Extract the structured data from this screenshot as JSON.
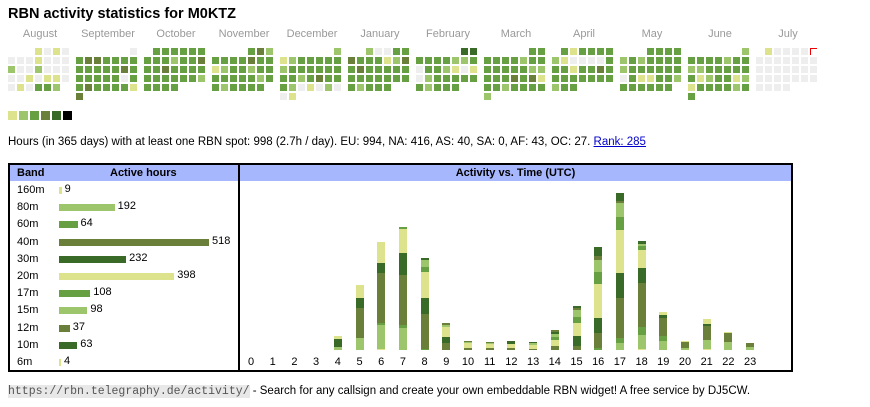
{
  "title": "RBN activity statistics for M0KTZ",
  "level_colors": {
    "0": "#eeeeee",
    "1": "#dce38c",
    "2": "#9dc56b",
    "3": "#67a043",
    "4": "#6a7f3a",
    "5": "#3a6a27",
    "6": "#000000"
  },
  "calendar": {
    "months": [
      {
        "name": "August",
        "weeks": [
          [
            "",
            "",
            "",
            1,
            0,
            1,
            0
          ],
          [
            0,
            0,
            0,
            1,
            0,
            0,
            0
          ],
          [
            2,
            0,
            0,
            2,
            0,
            0,
            0
          ],
          [
            0,
            0,
            1,
            0,
            1,
            1,
            0
          ],
          [
            0,
            1,
            0,
            3,
            3,
            2,
            ""
          ]
        ]
      },
      {
        "name": "September",
        "weeks": [
          [
            "",
            "",
            "",
            "",
            "",
            "",
            0
          ],
          [
            3,
            4,
            4,
            3,
            3,
            3,
            3
          ],
          [
            3,
            3,
            3,
            3,
            3,
            4,
            3
          ],
          [
            3,
            3,
            3,
            3,
            3,
            0,
            3
          ],
          [
            3,
            4,
            3,
            3,
            3,
            3,
            1
          ],
          [
            4,
            "",
            "",
            "",
            "",
            "",
            ""
          ]
        ]
      },
      {
        "name": "October",
        "weeks": [
          [
            "",
            3,
            3,
            3,
            3,
            3,
            3
          ],
          [
            3,
            3,
            3,
            2,
            3,
            3,
            4
          ],
          [
            3,
            3,
            4,
            3,
            3,
            3,
            3
          ],
          [
            3,
            3,
            3,
            3,
            3,
            3,
            2
          ],
          [
            3,
            3,
            3,
            3,
            "",
            "",
            ""
          ]
        ]
      },
      {
        "name": "November",
        "weeks": [
          [
            "",
            "",
            "",
            "",
            3,
            4,
            2
          ],
          [
            3,
            3,
            3,
            3,
            4,
            3,
            3
          ],
          [
            1,
            2,
            3,
            3,
            2,
            3,
            3
          ],
          [
            3,
            3,
            3,
            3,
            3,
            2,
            3
          ],
          [
            3,
            2,
            3,
            3,
            3,
            3,
            ""
          ]
        ]
      },
      {
        "name": "December",
        "weeks": [
          [
            "",
            "",
            "",
            "",
            "",
            "",
            2
          ],
          [
            1,
            2,
            3,
            3,
            3,
            3,
            3
          ],
          [
            2,
            3,
            3,
            3,
            3,
            3,
            3
          ],
          [
            3,
            3,
            2,
            3,
            4,
            3,
            3
          ],
          [
            3,
            2,
            0,
            1,
            0,
            2,
            0
          ],
          [
            0,
            1,
            "",
            "",
            "",
            "",
            ""
          ]
        ]
      },
      {
        "name": "January",
        "weeks": [
          [
            "",
            "",
            2,
            0,
            0,
            3,
            3
          ],
          [
            4,
            3,
            3,
            3,
            1,
            2,
            4
          ],
          [
            3,
            4,
            3,
            3,
            3,
            3,
            3
          ],
          [
            3,
            3,
            3,
            3,
            3,
            3,
            3
          ],
          [
            3,
            2,
            3,
            3,
            3,
            "",
            ""
          ]
        ]
      },
      {
        "name": "February",
        "weeks": [
          [
            "",
            "",
            "",
            "",
            "",
            5,
            5
          ],
          [
            3,
            3,
            3,
            3,
            2,
            2,
            3
          ],
          [
            0,
            3,
            3,
            2,
            1,
            0,
            1
          ],
          [
            0,
            2,
            3,
            3,
            3,
            3,
            3
          ],
          [
            3,
            2,
            3,
            3,
            3,
            "",
            ""
          ]
        ]
      },
      {
        "name": "March",
        "weeks": [
          [
            "",
            "",
            "",
            "",
            "",
            3,
            3
          ],
          [
            3,
            3,
            3,
            3,
            2,
            3,
            3
          ],
          [
            3,
            3,
            3,
            3,
            3,
            2,
            2
          ],
          [
            3,
            3,
            3,
            4,
            3,
            4,
            1
          ],
          [
            3,
            3,
            2,
            3,
            3,
            3,
            3
          ],
          [
            2,
            "",
            "",
            "",
            "",
            "",
            ""
          ]
        ]
      },
      {
        "name": "April",
        "weeks": [
          [
            "",
            3,
            1,
            3,
            3,
            3,
            3
          ],
          [
            2,
            1,
            0,
            0,
            0,
            0,
            3
          ],
          [
            3,
            3,
            1,
            3,
            3,
            4,
            3
          ],
          [
            3,
            3,
            3,
            3,
            3,
            3,
            3
          ],
          [
            2,
            3,
            3,
            "",
            "",
            "",
            ""
          ]
        ]
      },
      {
        "name": "May",
        "weeks": [
          [
            "",
            "",
            "",
            3,
            3,
            3,
            3
          ],
          [
            2,
            3,
            2,
            3,
            3,
            3,
            3
          ],
          [
            2,
            3,
            3,
            3,
            3,
            3,
            3
          ],
          [
            0,
            3,
            1,
            1,
            3,
            3,
            2
          ],
          [
            3,
            3,
            3,
            3,
            3,
            3,
            ""
          ]
        ]
      },
      {
        "name": "June",
        "weeks": [
          [
            "",
            "",
            "",
            "",
            "",
            "",
            2
          ],
          [
            3,
            3,
            3,
            3,
            2,
            3,
            3
          ],
          [
            2,
            2,
            3,
            3,
            3,
            3,
            3
          ],
          [
            3,
            1,
            2,
            3,
            3,
            1,
            2
          ],
          [
            1,
            3,
            3,
            3,
            3,
            2,
            3
          ],
          [
            3,
            "",
            "",
            "",
            "",
            "",
            ""
          ]
        ]
      },
      {
        "name": "July",
        "weeks": [
          [
            "",
            1,
            0,
            0,
            0,
            0,
            "t"
          ],
          [
            0,
            0,
            0,
            0,
            0,
            0,
            0
          ],
          [
            0,
            0,
            0,
            0,
            0,
            0,
            0
          ],
          [
            0,
            0,
            0,
            0,
            0,
            0,
            0
          ],
          [
            0,
            0,
            0,
            0,
            "",
            "",
            ""
          ]
        ]
      }
    ],
    "legend_levels": [
      1,
      2,
      3,
      4,
      5,
      6
    ]
  },
  "stats": {
    "text": "Hours (in 365 days) with at least one RBN spot: 998 (2.7h / day). EU: 994, NA: 416, AS: 40, SA: 0, AF: 43, OC: 27.",
    "rank_link": "Rank: 285"
  },
  "bands": {
    "header_band": "Band",
    "header_hours": "Active hours",
    "max": 518,
    "rows": [
      {
        "band": "160m",
        "hours": 9,
        "level": 1
      },
      {
        "band": "80m",
        "hours": 192,
        "level": 2
      },
      {
        "band": "60m",
        "hours": 64,
        "level": 3
      },
      {
        "band": "40m",
        "hours": 518,
        "level": 4
      },
      {
        "band": "30m",
        "hours": 232,
        "level": 5
      },
      {
        "band": "20m",
        "hours": 398,
        "level": 1
      },
      {
        "band": "17m",
        "hours": 108,
        "level": 3
      },
      {
        "band": "15m",
        "hours": 98,
        "level": 2
      },
      {
        "band": "12m",
        "hours": 37,
        "level": 4
      },
      {
        "band": "10m",
        "hours": 63,
        "level": 5
      },
      {
        "band": "6m",
        "hours": 4,
        "level": 1
      }
    ]
  },
  "chart_data": {
    "type": "bar",
    "title": "Activity vs. Time (UTC)",
    "xlabel": "",
    "ylabel": "",
    "categories": [
      "0",
      "1",
      "2",
      "3",
      "4",
      "5",
      "6",
      "7",
      "8",
      "9",
      "10",
      "11",
      "12",
      "13",
      "14",
      "15",
      "16",
      "17",
      "18",
      "19",
      "20",
      "21",
      "22",
      "23"
    ],
    "stack_note": "each hour: stacked segments bottom→top as [level, relative_hours]",
    "stacks": [
      [],
      [],
      [],
      [],
      [
        [
          2,
          3
        ],
        [
          5,
          8
        ],
        [
          1,
          3
        ]
      ],
      [
        [
          2,
          12
        ],
        [
          4,
          30
        ],
        [
          5,
          10
        ],
        [
          1,
          13
        ]
      ],
      [
        [
          1,
          1
        ],
        [
          2,
          24
        ],
        [
          3,
          2
        ],
        [
          4,
          50
        ],
        [
          5,
          10
        ],
        [
          1,
          21
        ]
      ],
      [
        [
          2,
          22
        ],
        [
          3,
          3
        ],
        [
          4,
          50
        ],
        [
          5,
          22
        ],
        [
          1,
          24
        ],
        [
          3,
          2
        ]
      ],
      [
        [
          3,
          1
        ],
        [
          4,
          35
        ],
        [
          5,
          16
        ],
        [
          1,
          26
        ],
        [
          3,
          5
        ],
        [
          2,
          7
        ],
        [
          5,
          2
        ]
      ],
      [
        [
          4,
          7
        ],
        [
          5,
          6
        ],
        [
          1,
          10
        ],
        [
          2,
          2
        ],
        [
          4,
          2
        ]
      ],
      [
        [
          4,
          2
        ],
        [
          1,
          5
        ],
        [
          2,
          1
        ],
        [
          4,
          1
        ]
      ],
      [
        [
          4,
          2
        ],
        [
          1,
          4
        ],
        [
          2,
          1
        ],
        [
          4,
          1
        ]
      ],
      [
        [
          4,
          2
        ],
        [
          1,
          4
        ],
        [
          5,
          3
        ]
      ],
      [
        [
          4,
          1
        ],
        [
          1,
          4
        ],
        [
          2,
          2
        ],
        [
          5,
          1
        ]
      ],
      [
        [
          4,
          4
        ],
        [
          1,
          6
        ],
        [
          3,
          3
        ],
        [
          2,
          3
        ],
        [
          5,
          2
        ],
        [
          4,
          2
        ]
      ],
      [
        [
          4,
          4
        ],
        [
          5,
          10
        ],
        [
          1,
          13
        ],
        [
          3,
          6
        ],
        [
          2,
          7
        ],
        [
          4,
          2
        ],
        [
          5,
          2
        ]
      ],
      [
        [
          3,
          2
        ],
        [
          4,
          15
        ],
        [
          5,
          15
        ],
        [
          1,
          34
        ],
        [
          3,
          12
        ],
        [
          2,
          12
        ],
        [
          4,
          4
        ],
        [
          5,
          9
        ]
      ],
      [
        [
          2,
          7
        ],
        [
          3,
          5
        ],
        [
          4,
          40
        ],
        [
          5,
          25
        ],
        [
          1,
          43
        ],
        [
          3,
          13
        ],
        [
          2,
          14
        ],
        [
          4,
          2
        ],
        [
          5,
          8
        ]
      ],
      [
        [
          1,
          1
        ],
        [
          2,
          14
        ],
        [
          3,
          8
        ],
        [
          4,
          44
        ],
        [
          5,
          15
        ],
        [
          1,
          18
        ],
        [
          3,
          4
        ],
        [
          2,
          2
        ],
        [
          5,
          3
        ]
      ],
      [
        [
          2,
          9
        ],
        [
          3,
          5
        ],
        [
          4,
          18
        ],
        [
          5,
          3
        ],
        [
          1,
          3
        ]
      ],
      [
        [
          2,
          2
        ],
        [
          4,
          6
        ],
        [
          1,
          1
        ]
      ],
      [
        [
          1,
          1
        ],
        [
          2,
          9
        ],
        [
          4,
          14
        ],
        [
          5,
          2
        ],
        [
          1,
          5
        ]
      ],
      [
        [
          2,
          8
        ],
        [
          4,
          9
        ],
        [
          1,
          1
        ]
      ],
      [
        [
          2,
          3
        ],
        [
          4,
          4
        ]
      ]
    ]
  },
  "footer": {
    "url": "https://rbn.telegraphy.de/activity/",
    "text": " - Search for any callsign and create your own embeddable RBN widget! A free service by DJ5CW."
  }
}
